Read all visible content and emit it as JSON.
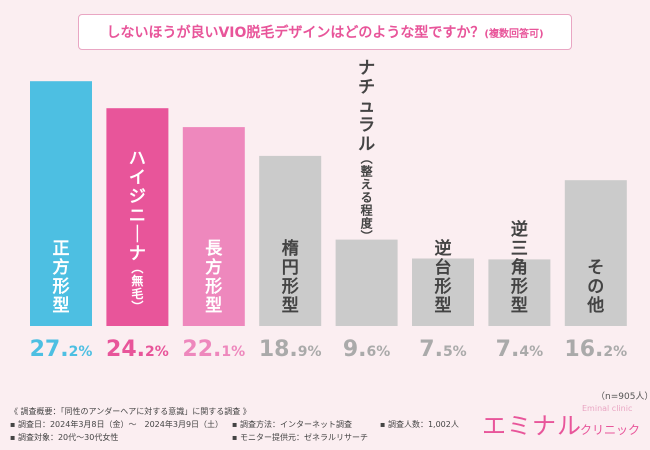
{
  "chart_data": {
    "type": "bar",
    "title": "しないほうが良いVIO脱毛デザインはどのような型ですか？",
    "title_note": "(複数回答可)",
    "unit": "%",
    "categories": [
      "正方形型",
      "ハイジニーナ（無毛）",
      "長方形型",
      "楕円形型",
      "ナチュラル（整える程度）",
      "逆台形型",
      "逆三角形型",
      "その他"
    ],
    "category_lines": [
      [
        "正方形型"
      ],
      [
        "ハイジニーナ",
        "（無毛）"
      ],
      [
        "長方形型"
      ],
      [
        "楕円形型"
      ],
      [
        "ナチュラル",
        "（整える程度）"
      ],
      [
        "逆台形型"
      ],
      [
        "逆三角形型"
      ],
      [
        "その他"
      ]
    ],
    "values": [
      27.2,
      24.2,
      22.1,
      18.9,
      9.6,
      7.5,
      7.4,
      16.2
    ],
    "ylim": [
      0,
      30
    ],
    "colors": [
      "#4dbfe2",
      "#e8559a",
      "#ee88bd",
      "#cbcbcb",
      "#cbcbcb",
      "#cbcbcb",
      "#cbcbcb",
      "#cbcbcb"
    ],
    "value_colors": [
      "#4dbfe2",
      "#e8559a",
      "#ee88bd",
      "#aaaaaa",
      "#aaaaaa",
      "#aaaaaa",
      "#aaaaaa",
      "#aaaaaa"
    ],
    "label_colors": [
      "#ffffff",
      "#ffffff",
      "#ffffff",
      "#444444",
      "#444444",
      "#444444",
      "#444444",
      "#444444"
    ],
    "label_position": [
      "inside",
      "inside",
      "inside",
      "inside",
      "above",
      "inside",
      "inside",
      "inside"
    ]
  },
  "sample_note": "（n=905人）",
  "survey": {
    "overview": "《 調査概要：「同性のアンダーヘアに対する意識」に関する調査 》",
    "date": "▪ 調査日：2024年3月8日（金）〜　2024年3月9日（土）",
    "method": "▪ 調査方法：インターネット調査",
    "count": "▪ 調査人数：1,002人",
    "target": "▪ 調査対象：20代〜30代女性",
    "provider": "▪ モニター提供元：ゼネラルリサーチ"
  },
  "logo": {
    "main": "エミナル",
    "small": "Eminal clinic",
    "sub": "クリニック"
  }
}
